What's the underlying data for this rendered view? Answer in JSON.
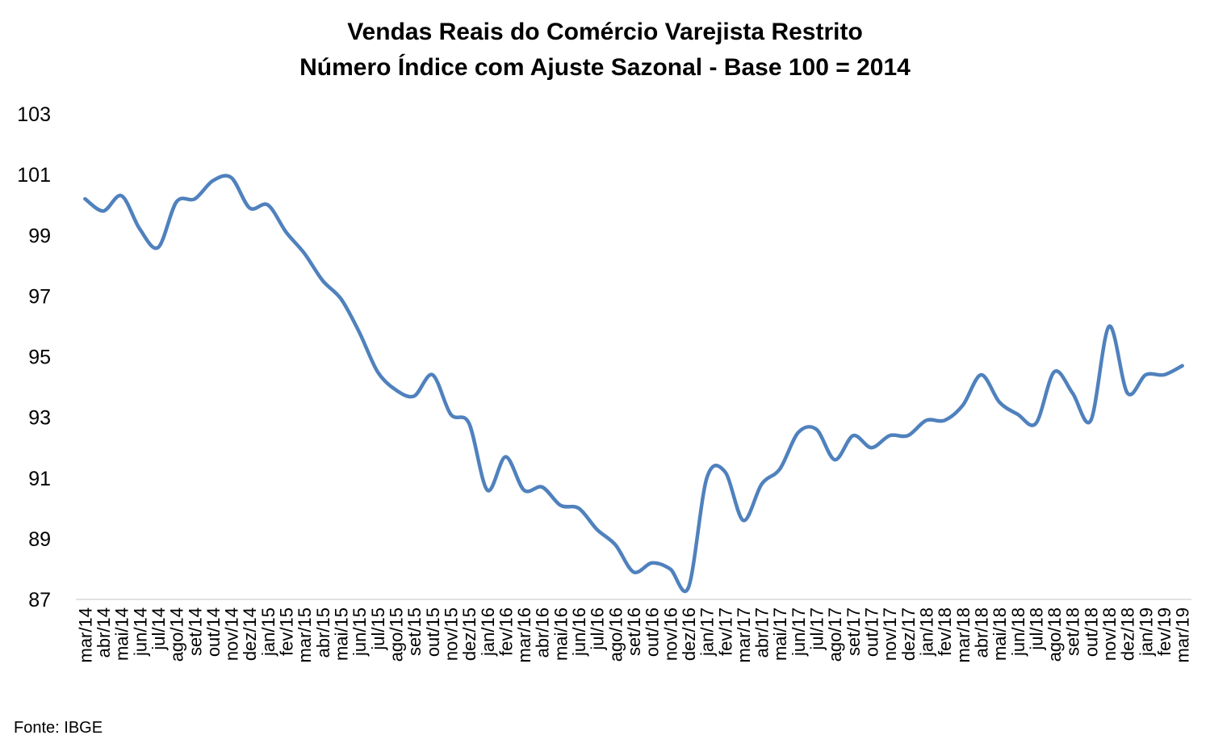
{
  "source": "Fonte: IBGE",
  "chart_data": {
    "type": "line",
    "title_lines": [
      "Vendas Reais do Comércio Varejista Restrito",
      "Número Índice com Ajuste Sazonal - Base 100 = 2014"
    ],
    "xlabel": "",
    "ylabel": "",
    "ylim": [
      87,
      103
    ],
    "yticks": [
      87,
      89,
      91,
      93,
      95,
      97,
      99,
      101,
      103
    ],
    "grid": false,
    "legend": "none",
    "line_color": "#4f81bd",
    "categories": [
      "mar/14",
      "abr/14",
      "mai/14",
      "jun/14",
      "jul/14",
      "ago/14",
      "set/14",
      "out/14",
      "nov/14",
      "dez/14",
      "jan/15",
      "fev/15",
      "mar/15",
      "abr/15",
      "mai/15",
      "jun/15",
      "jul/15",
      "ago/15",
      "set/15",
      "out/15",
      "nov/15",
      "dez/15",
      "jan/16",
      "fev/16",
      "mar/16",
      "abr/16",
      "mai/16",
      "jun/16",
      "jul/16",
      "ago/16",
      "set/16",
      "out/16",
      "nov/16",
      "dez/16",
      "jan/17",
      "fev/17",
      "mar/17",
      "abr/17",
      "mai/17",
      "jun/17",
      "jul/17",
      "ago/17",
      "set/17",
      "out/17",
      "nov/17",
      "dez/17",
      "jan/18",
      "fev/18",
      "mar/18",
      "abr/18",
      "mai/18",
      "jun/18",
      "jul/18",
      "ago/18",
      "set/18",
      "out/18",
      "nov/18",
      "dez/18",
      "jan/19",
      "fev/19",
      "mar/19"
    ],
    "values": [
      100.2,
      99.8,
      100.3,
      99.2,
      98.6,
      100.1,
      100.2,
      100.8,
      100.9,
      99.9,
      100.0,
      99.1,
      98.4,
      97.5,
      96.9,
      95.8,
      94.5,
      93.9,
      93.7,
      94.4,
      93.1,
      92.8,
      90.6,
      91.7,
      90.6,
      90.7,
      90.1,
      90.0,
      89.3,
      88.8,
      87.9,
      88.2,
      88.0,
      87.4,
      91.0,
      91.2,
      89.6,
      90.8,
      91.3,
      92.5,
      92.6,
      91.6,
      92.4,
      92.0,
      92.4,
      92.4,
      92.9,
      92.9,
      93.4,
      94.4,
      93.5,
      93.1,
      92.8,
      94.5,
      93.8,
      92.9,
      96.0,
      93.8,
      94.4,
      94.4,
      94.7
    ]
  }
}
